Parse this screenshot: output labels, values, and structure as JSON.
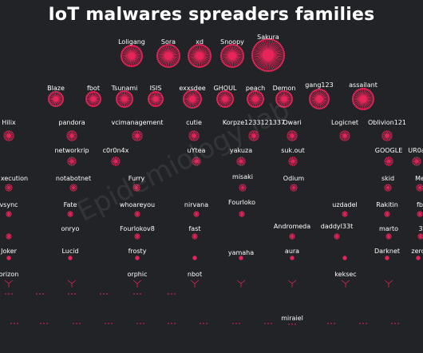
{
  "title": "IoT malwares spreaders families",
  "watermark": "Epidemiology lab",
  "colors": {
    "background": "#222326",
    "node": "#e8255a",
    "text": "#ffffff"
  },
  "families": [
    {
      "label": "Loligang"
    },
    {
      "label": "Sora"
    },
    {
      "label": "xd"
    },
    {
      "label": "Snoopy"
    },
    {
      "label": "Sakura"
    },
    {
      "label": "Blaze"
    },
    {
      "label": "fbot"
    },
    {
      "label": "Tsunami"
    },
    {
      "label": "ISIS"
    },
    {
      "label": "exxsdee"
    },
    {
      "label": "GHOUL"
    },
    {
      "label": "peach"
    },
    {
      "label": "Demon"
    },
    {
      "label": "gang123"
    },
    {
      "label": "assailant"
    },
    {
      "label": "Hilix"
    },
    {
      "label": "pandora"
    },
    {
      "label": "vcimanagement"
    },
    {
      "label": "cutie"
    },
    {
      "label": "Korpze1233121337"
    },
    {
      "label": "Owari"
    },
    {
      "label": "Logicnet"
    },
    {
      "label": "Oblivion121"
    },
    {
      "label": "networkrip"
    },
    {
      "label": "c0r0n4x"
    },
    {
      "label": "uYtea"
    },
    {
      "label": "yakuza"
    },
    {
      "label": "suk.out"
    },
    {
      "label": "GOOGLE"
    },
    {
      "label": "UR0a"
    },
    {
      "label": "xecution"
    },
    {
      "label": "notabotnet"
    },
    {
      "label": "Furry"
    },
    {
      "label": "misaki"
    },
    {
      "label": "Odium"
    },
    {
      "label": "skid"
    },
    {
      "label": "Me"
    },
    {
      "label": "vsync"
    },
    {
      "label": "Fate"
    },
    {
      "label": "whoareyou"
    },
    {
      "label": "nirvana"
    },
    {
      "label": "Fourloko"
    },
    {
      "label": "uzdadel"
    },
    {
      "label": "Rakitin"
    },
    {
      "label": "fb"
    },
    {
      "label": "onryo"
    },
    {
      "label": "Fourlokov8"
    },
    {
      "label": "fast"
    },
    {
      "label": "Andromeda"
    },
    {
      "label": "daddyl33t"
    },
    {
      "label": "marto"
    },
    {
      "label": "3"
    },
    {
      "label": "Joker"
    },
    {
      "label": "Lucid"
    },
    {
      "label": "frosty"
    },
    {
      "label": "yamaha"
    },
    {
      "label": "aura"
    },
    {
      "label": "Darknet"
    },
    {
      "label": "zero"
    },
    {
      "label": "orizon"
    },
    {
      "label": "orphic"
    },
    {
      "label": "nbot"
    },
    {
      "label": "keksec"
    },
    {
      "label": "miraiel"
    }
  ]
}
